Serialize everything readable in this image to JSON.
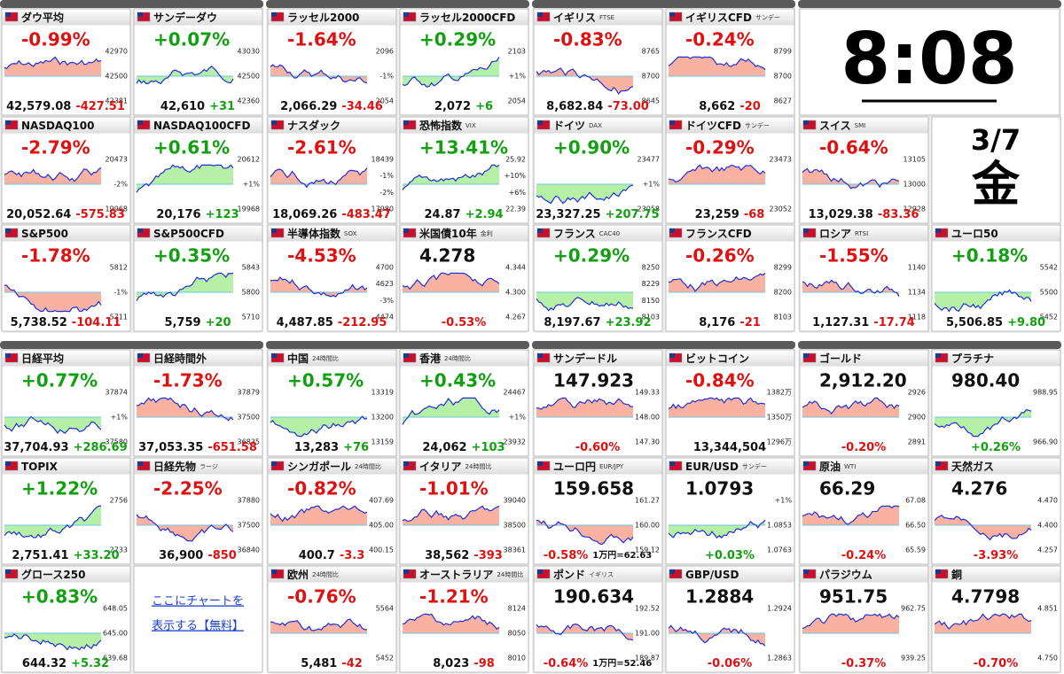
{
  "panels": [
    {
      "tiles": [
        {
          "name": "ダウ平均",
          "top": "-0.99%",
          "labels": [
            "42970",
            "42500",
            "42381"
          ],
          "bottom": [
            "42,579.08",
            "-427.51"
          ]
        },
        {
          "name": "サンデーダウ",
          "top": "+0.07%",
          "labels": [
            "43030",
            "42500",
            "42360"
          ],
          "bottom": [
            "42,610",
            "+31"
          ]
        },
        {
          "name": "NASDAQ100",
          "top": "-2.79%",
          "labels": [
            "20473",
            "-2%",
            "19968"
          ],
          "bottom": [
            "20,052.64",
            "-575.83"
          ]
        },
        {
          "name": "NASDAQ100CFD",
          "top": "+0.61%",
          "labels": [
            "20612",
            "+1%",
            "19968"
          ],
          "bottom": [
            "20,176",
            "+123"
          ]
        },
        {
          "name": "S&P500",
          "top": "-1.78%",
          "labels": [
            "5812",
            "-1%",
            "5711"
          ],
          "bottom": [
            "5,738.52",
            "-104.11"
          ]
        },
        {
          "name": "S&P500CFD",
          "top": "+0.35%",
          "labels": [
            "5843",
            "5800",
            "5710"
          ],
          "bottom": [
            "5,759",
            "+20"
          ]
        }
      ]
    },
    {
      "tiles": [
        {
          "name": "ラッセル2000",
          "top": "-1.64%",
          "labels": [
            "2096",
            "-1%",
            "2054"
          ],
          "bottom": [
            "2,066.29",
            "-34.46"
          ]
        },
        {
          "name": "ラッセル2000CFD",
          "top": "+0.29%",
          "labels": [
            "2103",
            "+1%",
            "2054"
          ],
          "bottom": [
            "2,072",
            "+6"
          ]
        },
        {
          "name": "ナスダック",
          "top": "-2.61%",
          "labels": [
            "18439",
            "-1%",
            "-2%",
            "17980"
          ],
          "bottom": [
            "18,069.26",
            "-483.47"
          ]
        },
        {
          "name": "恐怖指数",
          "sub": "VIX",
          "top": "+13.41%",
          "labels": [
            "25.92",
            "+10%",
            "+6%",
            "22.39"
          ],
          "bottom": [
            "24.87",
            "+2.94"
          ]
        },
        {
          "name": "半導体指数",
          "sub": "SOX",
          "top": "-4.53%",
          "labels": [
            "4700",
            "4623",
            "-3%",
            "4474"
          ],
          "bottom": [
            "4,487.85",
            "-212.95"
          ]
        },
        {
          "name": "米国債10年",
          "sub": "金利",
          "top": "4.278",
          "labels": [
            "4.344",
            "4.300",
            "4.267"
          ],
          "bottom": [
            "-0.53%"
          ]
        }
      ]
    },
    {
      "tiles": [
        {
          "name": "イギリス",
          "sub": "FTSE",
          "top": "-0.83%",
          "labels": [
            "8765",
            "8700",
            "8645"
          ],
          "bottom": [
            "8,682.84",
            "-73.00"
          ]
        },
        {
          "name": "イギリスCFD",
          "sub": "サンデー",
          "top": "-0.24%",
          "labels": [
            "8799",
            "8700",
            "8627"
          ],
          "bottom": [
            "8,662",
            "-20"
          ]
        },
        {
          "name": "ドイツ",
          "sub": "DAX",
          "top": "+0.90%",
          "labels": [
            "23477",
            "+1%",
            "23058"
          ],
          "bottom": [
            "23,327.25",
            "+207.75"
          ]
        },
        {
          "name": "ドイツCFD",
          "sub": "サンデー",
          "top": "-0.29%",
          "labels": [
            "23473",
            "23052"
          ],
          "bottom": [
            "23,259",
            "-68"
          ]
        },
        {
          "name": "フランス",
          "sub": "CAC40",
          "top": "+0.29%",
          "labels": [
            "8250",
            "8229",
            "8150",
            "8103"
          ],
          "bottom": [
            "8,197.67",
            "+23.92"
          ]
        },
        {
          "name": "フランスCFD",
          "top": "-0.26%",
          "labels": [
            "8299",
            "8200",
            "8103"
          ],
          "bottom": [
            "8,176",
            "-21"
          ]
        }
      ]
    },
    {
      "tiles": [
        {
          "clock": "8:08"
        },
        {
          "name": "スイス",
          "sub": "SMI",
          "top": "-0.64%",
          "labels": [
            "13105",
            "13000",
            "12928"
          ],
          "bottom": [
            "13,029.38",
            "-83.36"
          ]
        },
        {
          "date": "3/7",
          "weekday": "金"
        },
        {
          "name": "ロシア",
          "sub": "RTSI",
          "top": "-1.55%",
          "labels": [
            "1140",
            "1134",
            "1118"
          ],
          "bottom": [
            "1,127.31",
            "-17.74"
          ]
        },
        {
          "name": "ユーロ50",
          "top": "+0.18%",
          "labels": [
            "5542",
            "5500",
            "5452"
          ],
          "bottom": [
            "5,506.85",
            "+9.80"
          ]
        }
      ]
    },
    {
      "tiles": [
        {
          "name": "日経平均",
          "top": "+0.77%",
          "labels": [
            "37874",
            "+1%",
            "37580"
          ],
          "bottom": [
            "37,704.93",
            "+286.69"
          ]
        },
        {
          "name": "日経時間外",
          "top": "-1.73%",
          "labels": [
            "37879",
            "37500",
            "36835"
          ],
          "bottom": [
            "37,053.35",
            "-651.58"
          ]
        },
        {
          "name": "TOPIX",
          "top": "+1.22%",
          "labels": [
            "2756",
            "2733"
          ],
          "bottom": [
            "2,751.41",
            "+33.20"
          ]
        },
        {
          "name": "日経先物",
          "sub": "ラージ",
          "top": "-2.25%",
          "labels": [
            "37880",
            "37500",
            "36840"
          ],
          "bottom": [
            "36,900",
            "-850"
          ]
        },
        {
          "name": "グロース250",
          "top": "+0.83%",
          "labels": [
            "648.05",
            "645.00",
            "639.68"
          ],
          "bottom": [
            "644.32",
            "+5.32"
          ]
        },
        {
          "link": [
            "ここにチャートを",
            "表示する【無料】"
          ]
        }
      ]
    },
    {
      "tiles": [
        {
          "name": "中国",
          "sub": "24時間比",
          "top": "+0.57%",
          "labels": [
            "13319",
            "13200",
            "13159"
          ],
          "bottom": [
            "13,283",
            "+76"
          ]
        },
        {
          "name": "香港",
          "sub": "24時間比",
          "top": "+0.43%",
          "labels": [
            "24467",
            "+1%",
            "23932"
          ],
          "bottom": [
            "24,062",
            "+103"
          ]
        },
        {
          "name": "シンガポール",
          "sub": "24時間比",
          "top": "-0.82%",
          "labels": [
            "407.69",
            "405.00",
            "400.15"
          ],
          "bottom": [
            "400.7",
            "-3.3"
          ]
        },
        {
          "name": "イタリア",
          "sub": "24時間比",
          "top": "-1.01%",
          "labels": [
            "39040",
            "38500",
            "38361"
          ],
          "bottom": [
            "38,562",
            "-393"
          ]
        },
        {
          "name": "欧州",
          "sub": "24時間比",
          "top": "-0.76%",
          "labels": [
            "5564",
            "5452"
          ],
          "bottom": [
            "5,481",
            "-42"
          ]
        },
        {
          "name": "オーストラリア",
          "sub": "24時間比",
          "top": "-1.21%",
          "labels": [
            "8124",
            "8050",
            "8010"
          ],
          "bottom": [
            "8,023",
            "-98"
          ]
        }
      ]
    },
    {
      "tiles": [
        {
          "name": "サンデードル",
          "top": "147.923",
          "labels": [
            "149.33",
            "148.00",
            "147.30"
          ],
          "bottom": [
            "-0.60%"
          ]
        },
        {
          "name": "ビットコイン",
          "top": "-0.84%",
          "labels": [
            "1382万",
            "1350万",
            "1296万"
          ],
          "bottom": [
            "13,344,504"
          ]
        },
        {
          "name": "ユーロ円",
          "sub": "EUR/JPY",
          "top": "159.658",
          "labels": [
            "161.27",
            "160.00",
            "159.12"
          ],
          "bottom": [
            "-0.58%",
            "1万円=62.63"
          ]
        },
        {
          "name": "EUR/USD",
          "sub": "サンデー",
          "top": "1.0793",
          "labels": [
            "+1%",
            "1.0853",
            "1.0763"
          ],
          "bottom": [
            "+0.03%"
          ]
        },
        {
          "name": "ポンド",
          "sub": "イギリス",
          "top": "190.634",
          "labels": [
            "192.52",
            "191.00",
            "189.87"
          ],
          "bottom": [
            "-0.64%",
            "1万円=52.46"
          ]
        },
        {
          "name": "GBP/USD",
          "top": "1.2884",
          "labels": [
            "1.2924",
            "1.2863"
          ],
          "bottom": [
            "-0.06%"
          ]
        }
      ]
    },
    {
      "tiles": [
        {
          "name": "ゴールド",
          "top": "2,912.20",
          "labels": [
            "2926",
            "2900",
            "2891"
          ],
          "bottom": [
            "-0.20%"
          ]
        },
        {
          "name": "プラチナ",
          "top": "980.40",
          "labels": [
            "988.95",
            "966.90"
          ],
          "bottom": [
            "+0.26%"
          ]
        },
        {
          "name": "原油",
          "sub": "WTI",
          "top": "66.29",
          "labels": [
            "67.08",
            "66.50",
            "65.59"
          ],
          "bottom": [
            "-0.24%"
          ]
        },
        {
          "name": "天然ガス",
          "top": "4.276",
          "labels": [
            "4.470",
            "4.400",
            "4.257"
          ],
          "bottom": [
            "-3.93%"
          ]
        },
        {
          "name": "パラジウム",
          "top": "951.75",
          "labels": [
            "962.75",
            "939.25"
          ],
          "bottom": [
            "-0.37%"
          ]
        },
        {
          "name": "銅",
          "top": "4.7798",
          "labels": [
            "4.851",
            "4.750"
          ],
          "bottom": [
            "-0.70%"
          ]
        }
      ]
    }
  ]
}
